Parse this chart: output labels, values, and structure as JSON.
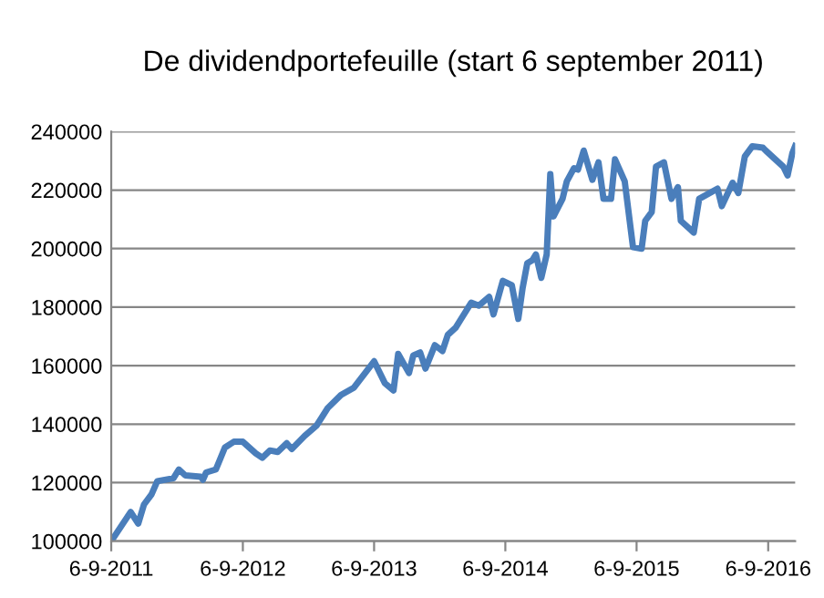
{
  "chart_data": {
    "type": "line",
    "title": "De dividendportefeuille (start 6 september 2011)",
    "grid": "y",
    "marker": "none",
    "line_style": "solid",
    "xlim": [
      "2011-09-06",
      "2016-11-20"
    ],
    "ylim": [
      100000,
      240000
    ],
    "xticks": [
      {
        "value": "2011-09-06",
        "label": "6-9-2011"
      },
      {
        "value": "2012-09-06",
        "label": "6-9-2012"
      },
      {
        "value": "2013-09-06",
        "label": "6-9-2013"
      },
      {
        "value": "2014-09-06",
        "label": "6-9-2014"
      },
      {
        "value": "2015-09-06",
        "label": "6-9-2015"
      },
      {
        "value": "2016-09-06",
        "label": "6-9-2016"
      }
    ],
    "yticks": [
      100000,
      120000,
      140000,
      160000,
      180000,
      200000,
      220000,
      240000
    ],
    "series": [
      {
        "color": "#4a7ebb",
        "x": [
          "2011-09-06",
          "2011-10-30",
          "2011-11-20",
          "2011-12-06",
          "2011-12-27",
          "2012-01-12",
          "2012-02-26",
          "2012-03-12",
          "2012-03-30",
          "2012-05-12",
          "2012-05-18",
          "2012-05-27",
          "2012-06-23",
          "2012-07-18",
          "2012-08-12",
          "2012-09-06",
          "2012-10-12",
          "2012-10-30",
          "2012-11-20",
          "2012-12-12",
          "2013-01-06",
          "2013-01-20",
          "2013-02-25",
          "2013-03-30",
          "2013-04-30",
          "2013-06-06",
          "2013-07-12",
          "2013-09-06",
          "2013-10-06",
          "2013-10-30",
          "2013-11-12",
          "2013-12-12",
          "2013-12-24",
          "2014-01-12",
          "2014-01-27",
          "2014-02-22",
          "2014-03-15",
          "2014-03-30",
          "2014-04-21",
          "2014-06-03",
          "2014-06-24",
          "2014-07-23",
          "2014-08-04",
          "2014-08-30",
          "2014-09-24",
          "2014-10-12",
          "2014-10-24",
          "2014-11-06",
          "2014-11-20",
          "2014-11-30",
          "2014-12-15",
          "2014-12-30",
          "2015-01-09",
          "2015-01-18",
          "2015-02-12",
          "2015-02-24",
          "2015-03-16",
          "2015-03-27",
          "2015-04-12",
          "2015-05-06",
          "2015-05-23",
          "2015-06-06",
          "2015-06-27",
          "2015-07-08",
          "2015-08-04",
          "2015-08-27",
          "2015-09-20",
          "2015-09-30",
          "2015-10-18",
          "2015-10-30",
          "2015-11-21",
          "2015-12-12",
          "2015-12-30",
          "2016-01-07",
          "2016-02-12",
          "2016-02-27",
          "2016-04-18",
          "2016-04-30",
          "2016-05-30",
          "2016-06-15",
          "2016-07-03",
          "2016-07-24",
          "2016-08-22",
          "2016-08-30",
          "2016-10-18",
          "2016-10-30",
          "2016-11-12",
          "2016-11-20"
        ],
        "values": [
          100000,
          110000,
          106000,
          112500,
          116000,
          120500,
          121500,
          124500,
          122500,
          122000,
          121000,
          123500,
          124500,
          132000,
          134000,
          134000,
          130000,
          128500,
          131000,
          130500,
          133500,
          131500,
          136000,
          139500,
          145500,
          150000,
          152500,
          161500,
          154000,
          151500,
          164000,
          157500,
          163500,
          164500,
          159000,
          167000,
          165000,
          170500,
          173000,
          181500,
          180500,
          183500,
          177500,
          189000,
          187500,
          176000,
          186500,
          195000,
          196000,
          198000,
          190000,
          198000,
          225500,
          211000,
          217000,
          223000,
          227500,
          227000,
          233500,
          223500,
          229500,
          217000,
          217000,
          230500,
          223000,
          200500,
          200000,
          209500,
          212500,
          228000,
          229500,
          217000,
          221000,
          209500,
          205500,
          217000,
          220500,
          214500,
          222500,
          219000,
          231500,
          235000,
          234500,
          233500,
          228000,
          225000,
          232500,
          235000
        ]
      }
    ]
  }
}
